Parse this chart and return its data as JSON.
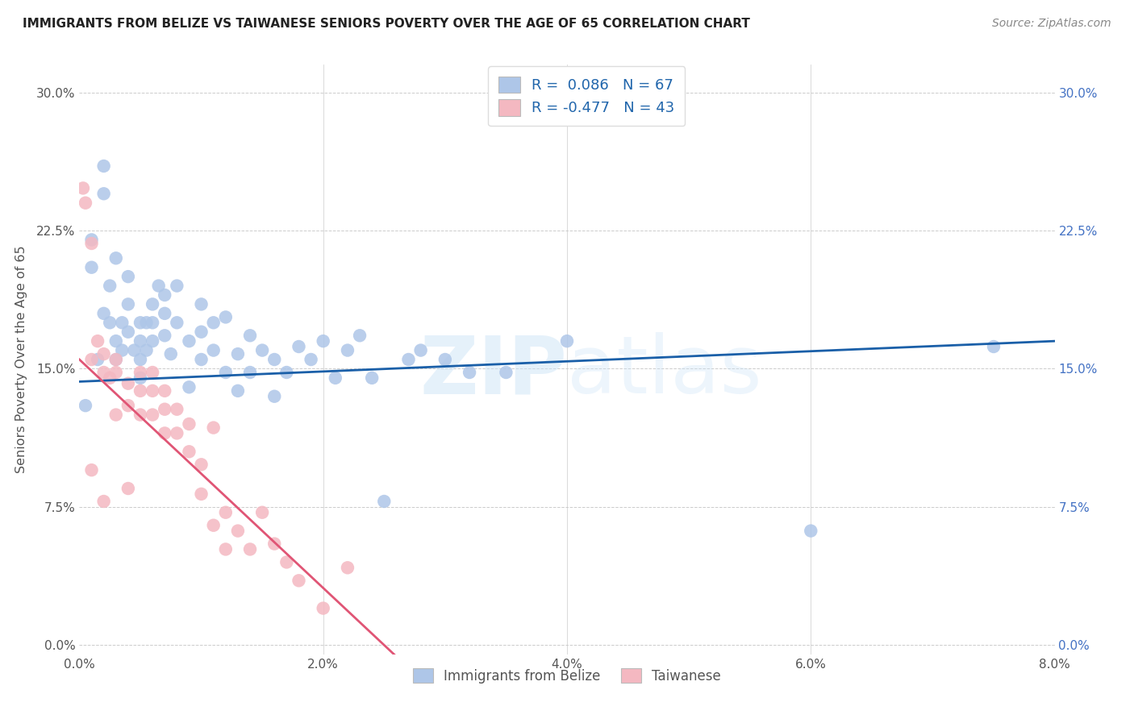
{
  "title": "IMMIGRANTS FROM BELIZE VS TAIWANESE SENIORS POVERTY OVER THE AGE OF 65 CORRELATION CHART",
  "source": "Source: ZipAtlas.com",
  "ylabel": "Seniors Poverty Over the Age of 65",
  "x_tick_labels": [
    "0.0%",
    "2.0%",
    "4.0%",
    "6.0%",
    "8.0%"
  ],
  "x_tick_values": [
    0.0,
    0.02,
    0.04,
    0.06,
    0.08
  ],
  "y_tick_vals": [
    0.0,
    0.075,
    0.15,
    0.225,
    0.3
  ],
  "y_tick_labels": [
    "0.0%",
    "7.5%",
    "15.0%",
    "22.5%",
    "30.0%"
  ],
  "xlim": [
    0.0,
    0.08
  ],
  "ylim": [
    -0.005,
    0.315
  ],
  "belize_R": 0.086,
  "belize_N": 67,
  "taiwanese_R": -0.477,
  "taiwanese_N": 43,
  "belize_color": "#aec6e8",
  "taiwanese_color": "#f4b8c1",
  "belize_line_color": "#1a5fa8",
  "taiwanese_line_color": "#e05575",
  "legend_belize_label": "Immigrants from Belize",
  "legend_taiwanese_label": "Taiwanese",
  "belize_scatter_x": [
    0.0005,
    0.001,
    0.001,
    0.0015,
    0.002,
    0.002,
    0.002,
    0.0025,
    0.0025,
    0.003,
    0.003,
    0.003,
    0.0035,
    0.0035,
    0.004,
    0.004,
    0.004,
    0.0045,
    0.005,
    0.005,
    0.005,
    0.005,
    0.0055,
    0.0055,
    0.006,
    0.006,
    0.006,
    0.0065,
    0.007,
    0.007,
    0.007,
    0.0075,
    0.008,
    0.008,
    0.009,
    0.009,
    0.01,
    0.01,
    0.01,
    0.011,
    0.011,
    0.012,
    0.012,
    0.013,
    0.013,
    0.014,
    0.014,
    0.015,
    0.016,
    0.016,
    0.017,
    0.018,
    0.019,
    0.02,
    0.021,
    0.022,
    0.023,
    0.024,
    0.025,
    0.027,
    0.028,
    0.03,
    0.032,
    0.035,
    0.04,
    0.06,
    0.075
  ],
  "belize_scatter_y": [
    0.13,
    0.22,
    0.205,
    0.155,
    0.26,
    0.245,
    0.18,
    0.195,
    0.175,
    0.165,
    0.155,
    0.21,
    0.175,
    0.16,
    0.17,
    0.185,
    0.2,
    0.16,
    0.175,
    0.165,
    0.155,
    0.145,
    0.175,
    0.16,
    0.185,
    0.175,
    0.165,
    0.195,
    0.19,
    0.18,
    0.168,
    0.158,
    0.195,
    0.175,
    0.165,
    0.14,
    0.185,
    0.17,
    0.155,
    0.175,
    0.16,
    0.178,
    0.148,
    0.158,
    0.138,
    0.168,
    0.148,
    0.16,
    0.155,
    0.135,
    0.148,
    0.162,
    0.155,
    0.165,
    0.145,
    0.16,
    0.168,
    0.145,
    0.078,
    0.155,
    0.16,
    0.155,
    0.148,
    0.148,
    0.165,
    0.062,
    0.162
  ],
  "taiwanese_scatter_x": [
    0.0003,
    0.0005,
    0.001,
    0.001,
    0.001,
    0.0015,
    0.002,
    0.002,
    0.002,
    0.0025,
    0.003,
    0.003,
    0.003,
    0.004,
    0.004,
    0.004,
    0.005,
    0.005,
    0.005,
    0.006,
    0.006,
    0.006,
    0.007,
    0.007,
    0.007,
    0.008,
    0.008,
    0.009,
    0.009,
    0.01,
    0.01,
    0.011,
    0.011,
    0.012,
    0.012,
    0.013,
    0.014,
    0.015,
    0.016,
    0.017,
    0.018,
    0.02,
    0.022
  ],
  "taiwanese_scatter_y": [
    0.248,
    0.24,
    0.218,
    0.155,
    0.095,
    0.165,
    0.158,
    0.148,
    0.078,
    0.145,
    0.155,
    0.148,
    0.125,
    0.142,
    0.13,
    0.085,
    0.148,
    0.138,
    0.125,
    0.148,
    0.138,
    0.125,
    0.138,
    0.128,
    0.115,
    0.128,
    0.115,
    0.12,
    0.105,
    0.098,
    0.082,
    0.118,
    0.065,
    0.072,
    0.052,
    0.062,
    0.052,
    0.072,
    0.055,
    0.045,
    0.035,
    0.02,
    0.042
  ],
  "background_color": "#ffffff",
  "grid_color": "#cccccc"
}
